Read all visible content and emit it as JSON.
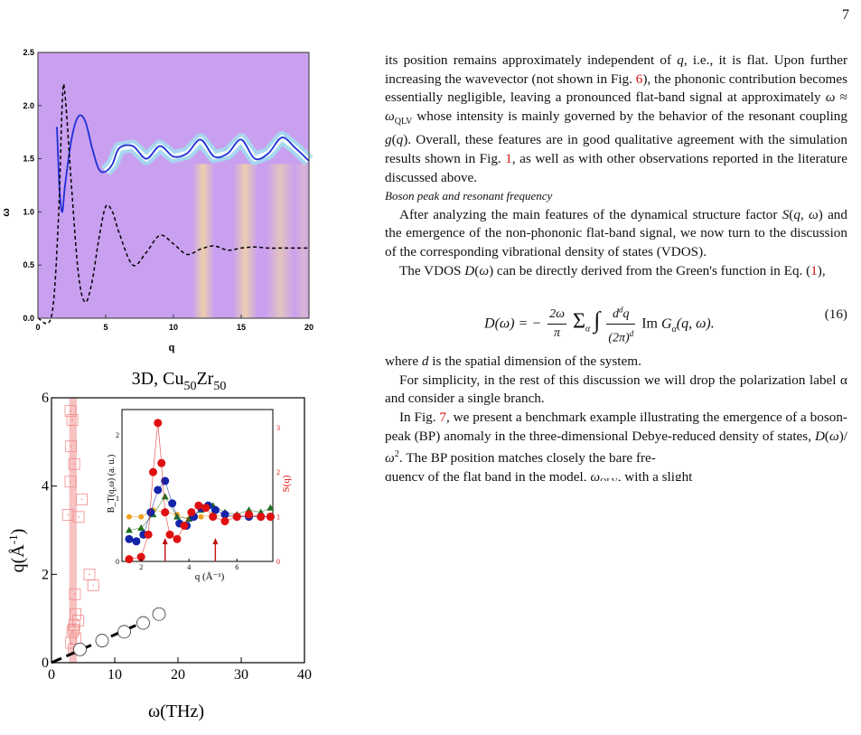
{
  "page_number": "7",
  "figure_top": {
    "xlabel": "q",
    "ylabel": "ω",
    "xticks": [
      "0",
      "5",
      "10",
      "15",
      "20"
    ],
    "yticks": [
      "0.0",
      "0.5",
      "1.0",
      "1.5",
      "2.0",
      "2.5"
    ],
    "colors": {
      "background": "#c9a0f0",
      "blue_curve": "#1e2fd6",
      "dashed_curve": "#000000",
      "peak_yellow": "#f1d49a",
      "peak_cyan": "#9fe3f0"
    },
    "chart_data": {
      "type": "line",
      "xlim": [
        0,
        20
      ],
      "ylim": [
        0,
        2.5
      ],
      "series": [
        {
          "style": "solid-blue",
          "x": [
            1.4,
            1.6,
            1.8,
            2.0,
            2.5,
            3.0,
            3.5,
            4.0,
            4.5,
            5.0,
            5.5,
            6.0,
            7.0,
            8.0,
            9.0,
            10.0,
            11.0,
            12.0,
            13.0,
            14.0,
            15.0,
            16.0,
            17.0,
            18.0,
            19.0,
            20.0
          ],
          "y": [
            1.8,
            1.2,
            1.0,
            1.25,
            1.7,
            1.9,
            1.85,
            1.6,
            1.4,
            1.38,
            1.45,
            1.6,
            1.62,
            1.5,
            1.62,
            1.52,
            1.55,
            1.68,
            1.52,
            1.55,
            1.68,
            1.5,
            1.55,
            1.7,
            1.6,
            1.48
          ]
        },
        {
          "style": "dashed-black",
          "x": [
            0,
            1.0,
            1.5,
            1.8,
            2.0,
            2.5,
            3.0,
            3.5,
            4.0,
            4.5,
            5.0,
            5.5,
            6.0,
            7.0,
            8.0,
            9.0,
            10.0,
            11.0,
            12.0,
            13.0,
            14.0,
            15.0,
            16.0,
            17.0,
            18.0,
            19.0,
            20.0
          ],
          "y": [
            0.0,
            0.02,
            0.9,
            2.05,
            2.1,
            1.2,
            0.4,
            0.15,
            0.35,
            0.75,
            1.05,
            1.0,
            0.8,
            0.5,
            0.62,
            0.78,
            0.7,
            0.6,
            0.65,
            0.68,
            0.64,
            0.66,
            0.67,
            0.66,
            0.66,
            0.66,
            0.66
          ]
        }
      ]
    }
  },
  "figure_bottom": {
    "title": "3D, Cu50Zr50",
    "title_main": "3D, Cu",
    "title_sub1": "50",
    "title_mid": "Zr",
    "title_sub2": "50",
    "xlabel": "ω(THz)",
    "ylabel_main": "q(",
    "ylabel_unit": "Å",
    "ylabel_exp": "-1",
    "ylabel_end": ")",
    "xticks": [
      "0",
      "10",
      "20",
      "30",
      "40"
    ],
    "yticks": [
      "0",
      "2",
      "4",
      "6"
    ],
    "colors": {
      "squares": "#f08a8a",
      "band": "#f5b3b3",
      "circles": "#333333"
    },
    "chart_data": {
      "type": "scatter",
      "xlim": [
        0,
        40
      ],
      "ylim": [
        0,
        6
      ],
      "squares": {
        "x": [
          3.0,
          3.3,
          3.1,
          3.6,
          3.0,
          4.8,
          2.6,
          4.3,
          6.0,
          6.6,
          3.7,
          3.8,
          4.2,
          3.6,
          3.5,
          3.3,
          3.8,
          3.1,
          3.5
        ],
        "y": [
          5.7,
          5.5,
          4.9,
          4.5,
          4.1,
          3.7,
          3.35,
          3.3,
          2.0,
          1.75,
          1.55,
          1.1,
          0.95,
          0.85,
          0.75,
          0.7,
          0.55,
          0.45,
          0.3
        ]
      },
      "circles": {
        "x": [
          4.5,
          8.0,
          11.5,
          14.5,
          17.0
        ],
        "y": [
          0.3,
          0.5,
          0.7,
          0.9,
          1.1
        ]
      },
      "line": {
        "x": [
          0,
          15
        ],
        "y": [
          0,
          0.95
        ]
      }
    },
    "inset": {
      "ylabel_left": "B_T(q,ω) (a. u.)",
      "ylabel_right": "S(q)",
      "xlabel": "q (Å⁻¹)",
      "xticks": [
        "2",
        "4",
        "6"
      ],
      "yticks_left": [
        "0",
        "1",
        "2"
      ],
      "yticks_right": [
        "0",
        "1",
        "2",
        "3"
      ],
      "chart_data": {
        "type": "scatter",
        "xlim": [
          1.2,
          7.5
        ],
        "ylim_right": [
          0,
          3.4
        ],
        "series": [
          {
            "name": "S(q)",
            "color": "#e01010",
            "x": [
              1.5,
              2.0,
              2.3,
              2.5,
              2.7,
              2.85,
              3.0,
              3.2,
              3.5,
              3.8,
              4.1,
              4.4,
              4.7,
              5.0,
              5.5,
              6.0,
              6.5,
              7.0,
              7.4
            ],
            "y": [
              0.05,
              0.1,
              0.6,
              2.0,
              3.1,
              2.2,
              1.1,
              0.6,
              0.5,
              0.8,
              1.1,
              1.25,
              1.2,
              1.0,
              0.9,
              1.0,
              1.05,
              1.0,
              1.0
            ]
          },
          {
            "name": "blue",
            "color": "#1424a8",
            "x": [
              1.5,
              1.8,
              2.1,
              2.4,
              2.7,
              3.0,
              3.3,
              3.6,
              3.9,
              4.2,
              4.5,
              4.8,
              5.1,
              5.5,
              6.0,
              6.5,
              7.0,
              7.4
            ],
            "y": [
              0.5,
              0.45,
              0.6,
              1.1,
              1.6,
              1.8,
              1.3,
              0.85,
              0.8,
              1.0,
              1.2,
              1.25,
              1.15,
              1.05,
              1.0,
              1.0,
              1.0,
              1.0
            ]
          },
          {
            "name": "green",
            "color": "#207020",
            "x": [
              1.5,
              2.0,
              2.5,
              3.0,
              3.5,
              4.0,
              4.5,
              5.0,
              5.5,
              6.0,
              6.5,
              7.0,
              7.4
            ],
            "y": [
              0.7,
              0.75,
              1.05,
              1.45,
              1.0,
              0.95,
              1.15,
              1.25,
              1.1,
              1.05,
              1.15,
              1.1,
              1.2
            ]
          },
          {
            "name": "orange",
            "color": "#f0a020",
            "x": [
              1.5,
              2.0,
              2.5,
              3.0,
              3.5,
              4.0,
              4.5,
              5.0,
              5.5,
              6.0,
              6.5,
              7.0,
              7.4
            ],
            "y": [
              1.0,
              1.0,
              1.15,
              1.1,
              1.05,
              0.95,
              1.0,
              1.05,
              1.0,
              1.0,
              1.0,
              1.0,
              1.0
            ]
          }
        ],
        "arrows_x": [
          3.0,
          5.1
        ]
      }
    }
  },
  "text": {
    "p1": "its position remains approximately independent of q, i.e., it is flat. Upon further increasing the wavevector (not shown in Fig. 6), the phononic contribution becomes essentially negligible, leaving a pronounced flat-band signal at approximately ω ≈ ωQLV whose intensity is mainly governed by the behavior of the resonant coupling g(q). Overall, these features are in good qualitative agreement with the simulation results shown in Fig. 1, as well as with other observations reported in the literature discussed above.",
    "section_title": "Boson peak and resonant frequency",
    "p2": "After analyzing the main features of the dynamical structure factor S(q, ω) and the emergence of the non-phononic flat-band signal, we now turn to the discussion of the corresponding vibrational density of states (VDOS).",
    "p3": "The VDOS D(ω) can be directly derived from the Green's function in Eq. (1),",
    "equation": "D(ω) = −(2ω/π) Σα ∫ d^dq/(2π)^d Im Gα(q, ω).",
    "eq_number": "(16)",
    "p4": "where d is the spatial dimension of the system.",
    "p5": "For simplicity, in the rest of this discussion we will drop the polarization label α and consider a single branch.",
    "p6": "In Fig. 7, we present a benchmark example illustrating the emergence of a boson-peak (BP) anomaly in the three-dimensional Debye-reduced density of states, D(ω)/ω². The BP position matches closely the bare frequency of the flat band in the model, ωQLV, with a slight"
  }
}
